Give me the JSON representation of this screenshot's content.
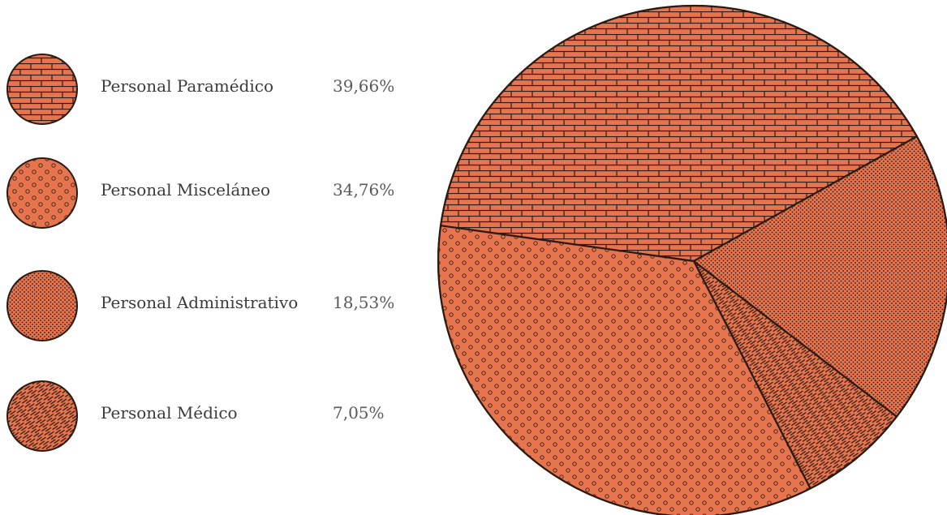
{
  "chart_data": {
    "type": "pie",
    "title": "",
    "start_angle_deg": 172,
    "direction": "clockwise",
    "slices": [
      {
        "label": "Personal Paramédico",
        "value": 39.66,
        "value_label": "39,66%",
        "pattern": "brick",
        "color": "#e6754f"
      },
      {
        "label": "Personal Administrativo",
        "value": 18.53,
        "value_label": "18,53%",
        "pattern": "dots-fine",
        "color": "#e6754f"
      },
      {
        "label": "Personal Médico",
        "value": 7.05,
        "value_label": "7,05%",
        "pattern": "hatch",
        "color": "#e6754f"
      },
      {
        "label": "Personal Misceláneo",
        "value": 34.76,
        "value_label": "34,76%",
        "pattern": "circles",
        "color": "#e6754f"
      }
    ]
  },
  "legend": {
    "items": [
      {
        "label": "Personal Paramédico",
        "value_label": "39,66%",
        "pattern": "brick"
      },
      {
        "label": "Personal Misceláneo",
        "value_label": "34,76%",
        "pattern": "circles"
      },
      {
        "label": "Personal Administrativo",
        "value_label": "18,53%",
        "pattern": "dots-fine"
      },
      {
        "label": "Personal Médico",
        "value_label": "7,05%",
        "pattern": "hatch"
      }
    ]
  },
  "colors": {
    "fill": "#e6754f",
    "ink": "#2a1a12",
    "text": "#3b3b3b"
  }
}
